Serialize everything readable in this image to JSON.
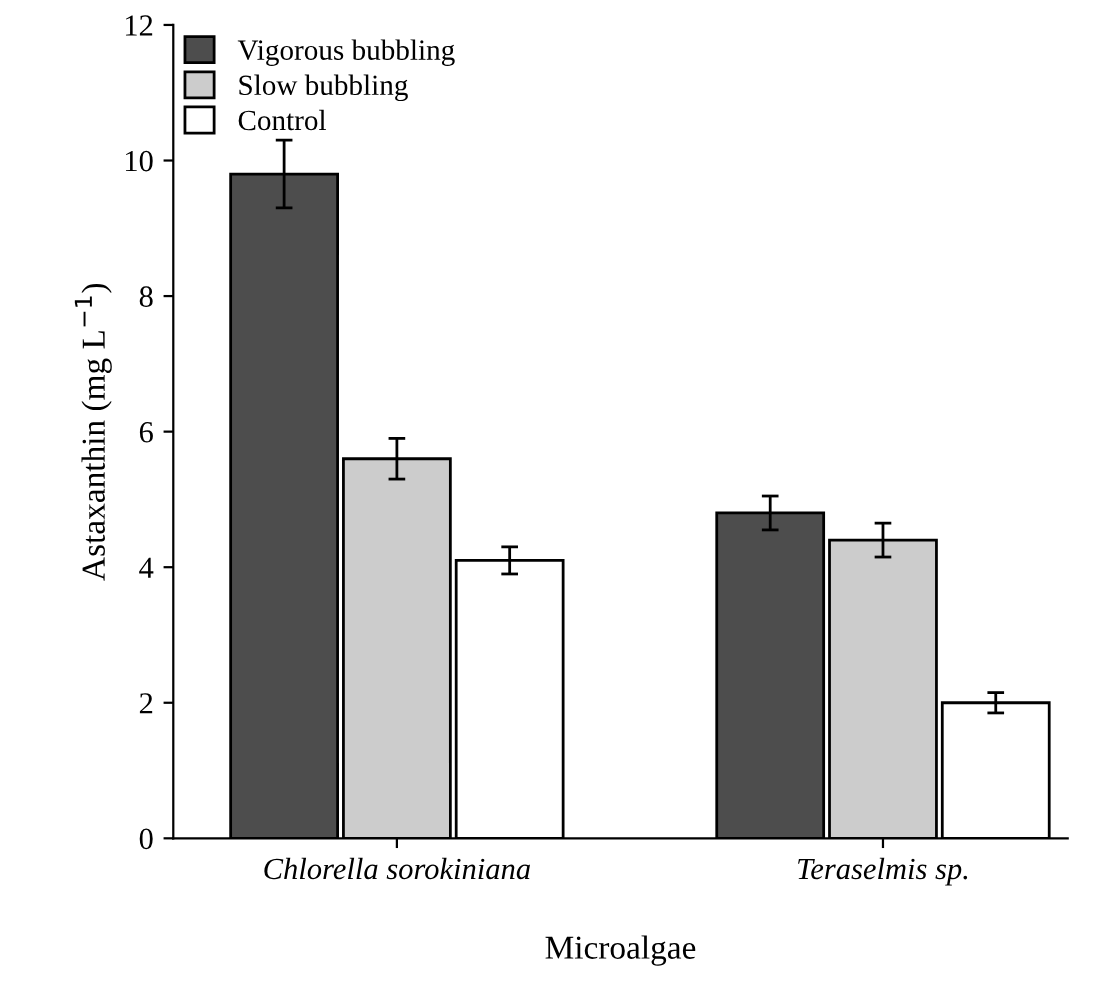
{
  "chart_data": {
    "type": "bar",
    "xlabel": "Microalgae",
    "ylabel": "Astaxanthin (mg L$^{−1}$)",
    "categories": [
      "Chlorella sorokiniana",
      "Teraselmis sp."
    ],
    "series": [
      {
        "name": "Vigorous bubbling",
        "color": "#4d4d4d",
        "values": [
          9.8,
          4.8
        ],
        "errors": [
          0.5,
          0.25
        ]
      },
      {
        "name": "Slow bubbling",
        "color": "#cccccc",
        "values": [
          5.6,
          4.4
        ],
        "errors": [
          0.3,
          0.25
        ]
      },
      {
        "name": "Control",
        "color": "#ffffff",
        "values": [
          4.1,
          2.0
        ],
        "errors": [
          0.2,
          0.15
        ]
      }
    ],
    "ylim": [
      0,
      12
    ],
    "yticks": [
      0,
      2,
      4,
      6,
      8,
      10,
      12
    ],
    "grid": false,
    "legend": "top left"
  }
}
